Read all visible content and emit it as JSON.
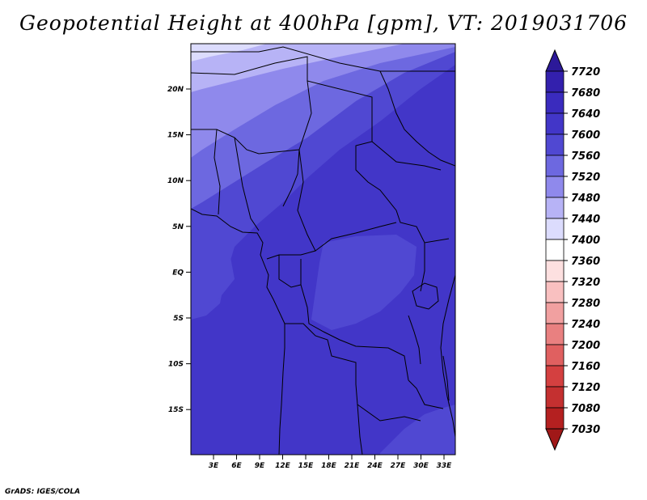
{
  "title": "Geopotential Height at 400hPa [gpm], VT: 2019031706",
  "credit": "GrADS: IGES/COLA",
  "map": {
    "lat_ticks": [
      "20N",
      "15N",
      "10N",
      "5N",
      "EQ",
      "5S",
      "10S",
      "15S"
    ],
    "lon_ticks": [
      "3E",
      "6E",
      "9E",
      "12E",
      "15E",
      "18E",
      "21E",
      "24E",
      "27E",
      "30E",
      "33E"
    ]
  },
  "colorbar": {
    "levels": [
      "7720",
      "7680",
      "7640",
      "7600",
      "7560",
      "7520",
      "7480",
      "7440",
      "7400",
      "7360",
      "7320",
      "7280",
      "7240",
      "7200",
      "7160",
      "7120",
      "7080",
      "7030"
    ],
    "colors": [
      "#2c1999",
      "#3320ad",
      "#3a2bbe",
      "#4236c8",
      "#5048d2",
      "#6d68e0",
      "#8f89ec",
      "#b7b3f6",
      "#dcdcfd",
      "#ffffff",
      "#fde0e0",
      "#f9c0c0",
      "#f1a0a0",
      "#e98080",
      "#e06060",
      "#d44040",
      "#c43030",
      "#b42020",
      "#a01818"
    ]
  }
}
